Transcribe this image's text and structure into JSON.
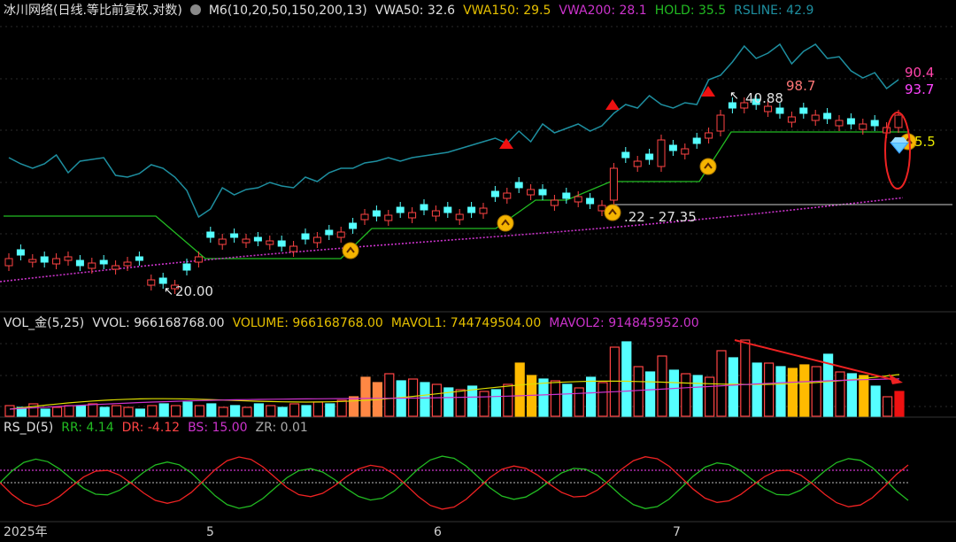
{
  "main_legend": {
    "title": "冰川网络(日线.等比前复权.对数)",
    "m6": "M6(10,20,50,150,200,13)",
    "vwa50": "VWA50: 32.6",
    "vwa150": "VWA150: 29.5",
    "vwa200": "VWA200: 28.1",
    "hold": "HOLD: 35.5",
    "rsline": "RSLINE: 42.9"
  },
  "price_annotations": {
    "low": "20.00",
    "high": "40.88",
    "range": ".22 - 27.35",
    "r1": "98.7",
    "r2": "90.4",
    "r3": "93.7",
    "hold_val": "5.5"
  },
  "vol_legend": {
    "title": "VOL_金(5,25)",
    "vvol": "VVOL: 966168768.00",
    "volume": "VOLUME: 966168768.00",
    "mavol1": "MAVOL1: 744749504.00",
    "mavol2": "MAVOL2: 914845952.00"
  },
  "rs_legend": {
    "title": "RS_D(5)",
    "rr": "RR: 4.14",
    "dr": "DR: -4.12",
    "bs": "BS: 15.00",
    "zr": "ZR: 0.01"
  },
  "x_axis": [
    "2025年",
    "5",
    "6",
    "7"
  ],
  "colors": {
    "up": "#ff4444",
    "down": "#55ffff",
    "hold": "#22bb22",
    "rsline": "#1e8fa0",
    "vwa": "#cc33cc",
    "mavol1": "#dddd00",
    "mavol2": "#cc33cc",
    "vol_orange": "#ff8844",
    "vol_gold": "#ffbb00"
  }
}
